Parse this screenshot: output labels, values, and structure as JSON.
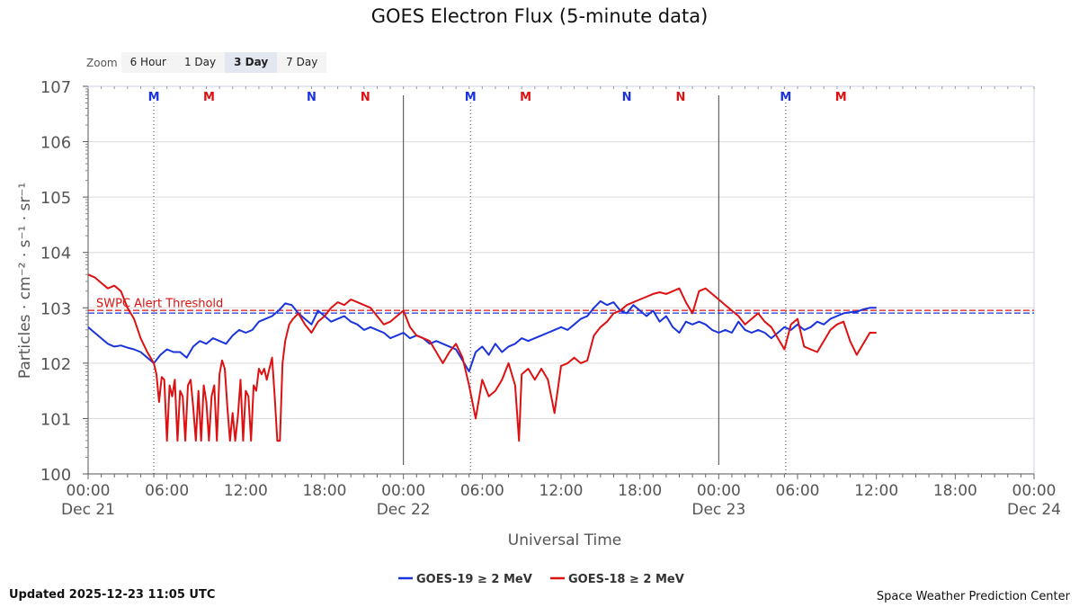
{
  "header": {
    "title": "GOES Electron Flux (5-minute data)"
  },
  "zoom": {
    "label": "Zoom",
    "options": [
      "6 Hour",
      "1 Day",
      "3 Day",
      "7 Day"
    ],
    "selected": "3 Day"
  },
  "footer": {
    "updated": "Updated 2025-12-23 11:05 UTC",
    "credit": "Space Weather Prediction Center"
  },
  "chart_data": {
    "type": "line",
    "title": "GOES Electron Flux (5-minute data)",
    "xlabel": "Universal Time",
    "ylabel": "Particles · cm⁻² · s⁻¹ · sr⁻¹",
    "y_scale": "log",
    "ylim_exponents": [
      0,
      7
    ],
    "y_ticks": [
      {
        "base": "10",
        "exp": "0"
      },
      {
        "base": "10",
        "exp": "1"
      },
      {
        "base": "10",
        "exp": "2"
      },
      {
        "base": "10",
        "exp": "3"
      },
      {
        "base": "10",
        "exp": "4"
      },
      {
        "base": "10",
        "exp": "5"
      },
      {
        "base": "10",
        "exp": "6"
      },
      {
        "base": "10",
        "exp": "7"
      }
    ],
    "x_range_hours": [
      0,
      72
    ],
    "x_ticks": [
      {
        "h": 0,
        "time": "00:00",
        "date": "Dec 21"
      },
      {
        "h": 6,
        "time": "06:00",
        "date": ""
      },
      {
        "h": 12,
        "time": "12:00",
        "date": ""
      },
      {
        "h": 18,
        "time": "18:00",
        "date": ""
      },
      {
        "h": 24,
        "time": "00:00",
        "date": "Dec 22"
      },
      {
        "h": 30,
        "time": "06:00",
        "date": ""
      },
      {
        "h": 36,
        "time": "12:00",
        "date": ""
      },
      {
        "h": 42,
        "time": "18:00",
        "date": ""
      },
      {
        "h": 48,
        "time": "00:00",
        "date": "Dec 23"
      },
      {
        "h": 54,
        "time": "06:00",
        "date": ""
      },
      {
        "h": 60,
        "time": "12:00",
        "date": ""
      },
      {
        "h": 66,
        "time": "18:00",
        "date": ""
      },
      {
        "h": 72,
        "time": "00:00",
        "date": "Dec 24"
      }
    ],
    "day_boundaries_hours": [
      24,
      48
    ],
    "markers": [
      {
        "h": 5.0,
        "label": "M",
        "color": "#1a33dd",
        "line": true
      },
      {
        "h": 9.2,
        "label": "M",
        "color": "#dd1111",
        "line": false
      },
      {
        "h": 17.0,
        "label": "N",
        "color": "#1a33dd",
        "line": false
      },
      {
        "h": 21.1,
        "label": "N",
        "color": "#dd1111",
        "line": false
      },
      {
        "h": 29.1,
        "label": "M",
        "color": "#1a33dd",
        "line": true
      },
      {
        "h": 33.3,
        "label": "M",
        "color": "#dd1111",
        "line": false
      },
      {
        "h": 41.0,
        "label": "N",
        "color": "#1a33dd",
        "line": false
      },
      {
        "h": 45.1,
        "label": "N",
        "color": "#dd1111",
        "line": false
      },
      {
        "h": 53.1,
        "label": "M",
        "color": "#1a33dd",
        "line": true
      },
      {
        "h": 57.3,
        "label": "M",
        "color": "#dd1111",
        "line": false
      }
    ],
    "threshold": {
      "label": "SWPC Alert Threshold",
      "value_exp": 2.93,
      "colors": [
        "#dd1111",
        "#1a33dd"
      ]
    },
    "series": [
      {
        "name": "GOES-19 ≥ 2 MeV",
        "color": "#1a33dd",
        "points": [
          [
            0,
            2.65
          ],
          [
            0.5,
            2.55
          ],
          [
            1,
            2.45
          ],
          [
            1.5,
            2.35
          ],
          [
            2,
            2.3
          ],
          [
            2.5,
            2.32
          ],
          [
            3,
            2.28
          ],
          [
            3.5,
            2.25
          ],
          [
            4,
            2.2
          ],
          [
            4.5,
            2.1
          ],
          [
            5,
            2.0
          ],
          [
            5.5,
            2.15
          ],
          [
            6,
            2.25
          ],
          [
            6.5,
            2.2
          ],
          [
            7,
            2.2
          ],
          [
            7.5,
            2.1
          ],
          [
            8,
            2.3
          ],
          [
            8.5,
            2.4
          ],
          [
            9,
            2.35
          ],
          [
            9.5,
            2.45
          ],
          [
            10,
            2.4
          ],
          [
            10.5,
            2.35
          ],
          [
            11,
            2.5
          ],
          [
            11.5,
            2.6
          ],
          [
            12,
            2.55
          ],
          [
            12.5,
            2.6
          ],
          [
            13,
            2.75
          ],
          [
            13.5,
            2.8
          ],
          [
            14,
            2.85
          ],
          [
            14.5,
            2.95
          ],
          [
            15,
            3.08
          ],
          [
            15.5,
            3.05
          ],
          [
            16,
            2.9
          ],
          [
            16.5,
            2.8
          ],
          [
            17,
            2.7
          ],
          [
            17.5,
            2.95
          ],
          [
            18,
            2.85
          ],
          [
            18.5,
            2.75
          ],
          [
            19,
            2.8
          ],
          [
            19.5,
            2.85
          ],
          [
            20,
            2.75
          ],
          [
            20.5,
            2.7
          ],
          [
            21,
            2.6
          ],
          [
            21.5,
            2.65
          ],
          [
            22,
            2.6
          ],
          [
            22.5,
            2.55
          ],
          [
            23,
            2.45
          ],
          [
            23.5,
            2.5
          ],
          [
            24,
            2.55
          ],
          [
            24.5,
            2.45
          ],
          [
            25,
            2.5
          ],
          [
            25.5,
            2.45
          ],
          [
            26,
            2.35
          ],
          [
            26.5,
            2.4
          ],
          [
            27,
            2.35
          ],
          [
            27.5,
            2.3
          ],
          [
            28,
            2.25
          ],
          [
            28.5,
            2.05
          ],
          [
            29,
            1.85
          ],
          [
            29.5,
            2.2
          ],
          [
            30,
            2.3
          ],
          [
            30.5,
            2.15
          ],
          [
            31,
            2.35
          ],
          [
            31.5,
            2.2
          ],
          [
            32,
            2.3
          ],
          [
            32.5,
            2.35
          ],
          [
            33,
            2.45
          ],
          [
            33.5,
            2.4
          ],
          [
            34,
            2.45
          ],
          [
            34.5,
            2.5
          ],
          [
            35,
            2.55
          ],
          [
            35.5,
            2.6
          ],
          [
            36,
            2.65
          ],
          [
            36.5,
            2.6
          ],
          [
            37,
            2.7
          ],
          [
            37.5,
            2.8
          ],
          [
            38,
            2.85
          ],
          [
            38.5,
            3.0
          ],
          [
            39,
            3.12
          ],
          [
            39.5,
            3.05
          ],
          [
            40,
            3.1
          ],
          [
            40.5,
            2.95
          ],
          [
            41,
            2.9
          ],
          [
            41.5,
            3.05
          ],
          [
            42,
            2.95
          ],
          [
            42.5,
            2.85
          ],
          [
            43,
            2.95
          ],
          [
            43.5,
            2.75
          ],
          [
            44,
            2.85
          ],
          [
            44.5,
            2.65
          ],
          [
            45,
            2.55
          ],
          [
            45.5,
            2.75
          ],
          [
            46,
            2.7
          ],
          [
            46.5,
            2.75
          ],
          [
            47,
            2.7
          ],
          [
            47.5,
            2.6
          ],
          [
            48,
            2.55
          ],
          [
            48.5,
            2.6
          ],
          [
            49,
            2.55
          ],
          [
            49.5,
            2.75
          ],
          [
            50,
            2.6
          ],
          [
            50.5,
            2.55
          ],
          [
            51,
            2.6
          ],
          [
            51.5,
            2.55
          ],
          [
            52,
            2.45
          ],
          [
            52.5,
            2.55
          ],
          [
            53,
            2.65
          ],
          [
            53.5,
            2.6
          ],
          [
            54,
            2.7
          ],
          [
            54.5,
            2.6
          ],
          [
            55,
            2.65
          ],
          [
            55.5,
            2.75
          ],
          [
            56,
            2.7
          ],
          [
            56.5,
            2.8
          ],
          [
            57,
            2.85
          ],
          [
            57.5,
            2.9
          ],
          [
            58,
            2.92
          ],
          [
            58.5,
            2.93
          ],
          [
            59,
            2.97
          ],
          [
            59.5,
            3.0
          ],
          [
            60,
            3.0
          ]
        ]
      },
      {
        "name": "GOES-18 ≥ 2 MeV",
        "color": "#dd1111",
        "points": [
          [
            0,
            3.6
          ],
          [
            0.5,
            3.55
          ],
          [
            1,
            3.45
          ],
          [
            1.5,
            3.35
          ],
          [
            2,
            3.4
          ],
          [
            2.5,
            3.3
          ],
          [
            3,
            3.0
          ],
          [
            3.5,
            2.8
          ],
          [
            4,
            2.45
          ],
          [
            4.5,
            2.2
          ],
          [
            5,
            2.0
          ],
          [
            5.2,
            1.8
          ],
          [
            5.4,
            1.3
          ],
          [
            5.6,
            1.75
          ],
          [
            5.8,
            1.7
          ],
          [
            6,
            0.6
          ],
          [
            6.2,
            1.6
          ],
          [
            6.4,
            1.4
          ],
          [
            6.6,
            1.7
          ],
          [
            6.8,
            0.6
          ],
          [
            7,
            1.5
          ],
          [
            7.2,
            1.4
          ],
          [
            7.4,
            0.6
          ],
          [
            7.6,
            1.6
          ],
          [
            7.8,
            1.7
          ],
          [
            8,
            1.2
          ],
          [
            8.2,
            0.6
          ],
          [
            8.4,
            1.5
          ],
          [
            8.6,
            0.6
          ],
          [
            8.8,
            1.6
          ],
          [
            9,
            1.3
          ],
          [
            9.2,
            0.6
          ],
          [
            9.4,
            1.4
          ],
          [
            9.6,
            1.6
          ],
          [
            9.8,
            0.6
          ],
          [
            10,
            1.8
          ],
          [
            10.2,
            2.05
          ],
          [
            10.4,
            1.9
          ],
          [
            10.6,
            1.2
          ],
          [
            10.8,
            0.6
          ],
          [
            11,
            1.1
          ],
          [
            11.2,
            0.6
          ],
          [
            11.4,
            1.05
          ],
          [
            11.6,
            1.7
          ],
          [
            11.8,
            0.6
          ],
          [
            12,
            1.5
          ],
          [
            12.2,
            1.4
          ],
          [
            12.4,
            0.6
          ],
          [
            12.6,
            1.6
          ],
          [
            12.8,
            1.5
          ],
          [
            13,
            1.9
          ],
          [
            13.2,
            1.8
          ],
          [
            13.4,
            1.9
          ],
          [
            13.6,
            1.7
          ],
          [
            13.8,
            1.9
          ],
          [
            14,
            2.1
          ],
          [
            14.2,
            1.4
          ],
          [
            14.4,
            0.6
          ],
          [
            14.6,
            0.6
          ],
          [
            14.8,
            2.0
          ],
          [
            15,
            2.4
          ],
          [
            15.3,
            2.7
          ],
          [
            15.6,
            2.8
          ],
          [
            16,
            2.9
          ],
          [
            16.5,
            2.7
          ],
          [
            17,
            2.55
          ],
          [
            17.5,
            2.75
          ],
          [
            18,
            2.85
          ],
          [
            18.5,
            3.0
          ],
          [
            19,
            3.1
          ],
          [
            19.5,
            3.05
          ],
          [
            20,
            3.15
          ],
          [
            20.5,
            3.1
          ],
          [
            21,
            3.05
          ],
          [
            21.5,
            3.0
          ],
          [
            22,
            2.85
          ],
          [
            22.5,
            2.7
          ],
          [
            23,
            2.75
          ],
          [
            23.5,
            2.85
          ],
          [
            24,
            2.95
          ],
          [
            24.5,
            2.65
          ],
          [
            25,
            2.5
          ],
          [
            25.5,
            2.45
          ],
          [
            26,
            2.4
          ],
          [
            26.5,
            2.2
          ],
          [
            27,
            2.0
          ],
          [
            27.5,
            2.2
          ],
          [
            28,
            2.35
          ],
          [
            28.5,
            2.1
          ],
          [
            29,
            1.6
          ],
          [
            29.5,
            1.0
          ],
          [
            30,
            1.7
          ],
          [
            30.5,
            1.4
          ],
          [
            31,
            1.5
          ],
          [
            31.5,
            1.7
          ],
          [
            32,
            2.0
          ],
          [
            32.5,
            1.6
          ],
          [
            32.8,
            0.6
          ],
          [
            33,
            1.8
          ],
          [
            33.5,
            1.9
          ],
          [
            34,
            1.7
          ],
          [
            34.5,
            1.9
          ],
          [
            35,
            1.7
          ],
          [
            35.5,
            1.1
          ],
          [
            36,
            1.95
          ],
          [
            36.5,
            2.0
          ],
          [
            37,
            2.1
          ],
          [
            37.5,
            2.0
          ],
          [
            38,
            2.05
          ],
          [
            38.5,
            2.5
          ],
          [
            39,
            2.65
          ],
          [
            39.5,
            2.75
          ],
          [
            40,
            2.9
          ],
          [
            40.5,
            2.95
          ],
          [
            41,
            3.05
          ],
          [
            41.5,
            3.1
          ],
          [
            42,
            3.15
          ],
          [
            42.5,
            3.2
          ],
          [
            43,
            3.25
          ],
          [
            43.5,
            3.28
          ],
          [
            44,
            3.25
          ],
          [
            44.5,
            3.3
          ],
          [
            45,
            3.35
          ],
          [
            45.5,
            3.1
          ],
          [
            46,
            2.9
          ],
          [
            46.5,
            3.3
          ],
          [
            47,
            3.35
          ],
          [
            47.5,
            3.25
          ],
          [
            48,
            3.15
          ],
          [
            48.5,
            3.05
          ],
          [
            49,
            2.95
          ],
          [
            49.5,
            2.85
          ],
          [
            50,
            2.7
          ],
          [
            50.5,
            2.8
          ],
          [
            51,
            2.9
          ],
          [
            51.5,
            2.75
          ],
          [
            52,
            2.65
          ],
          [
            52.5,
            2.45
          ],
          [
            53,
            2.25
          ],
          [
            53.5,
            2.7
          ],
          [
            54,
            2.8
          ],
          [
            54.5,
            2.3
          ],
          [
            55,
            2.25
          ],
          [
            55.5,
            2.2
          ],
          [
            56,
            2.4
          ],
          [
            56.5,
            2.6
          ],
          [
            57,
            2.7
          ],
          [
            57.5,
            2.75
          ],
          [
            58,
            2.4
          ],
          [
            58.5,
            2.15
          ],
          [
            59,
            2.35
          ],
          [
            59.5,
            2.55
          ],
          [
            60,
            2.55
          ]
        ]
      }
    ]
  }
}
